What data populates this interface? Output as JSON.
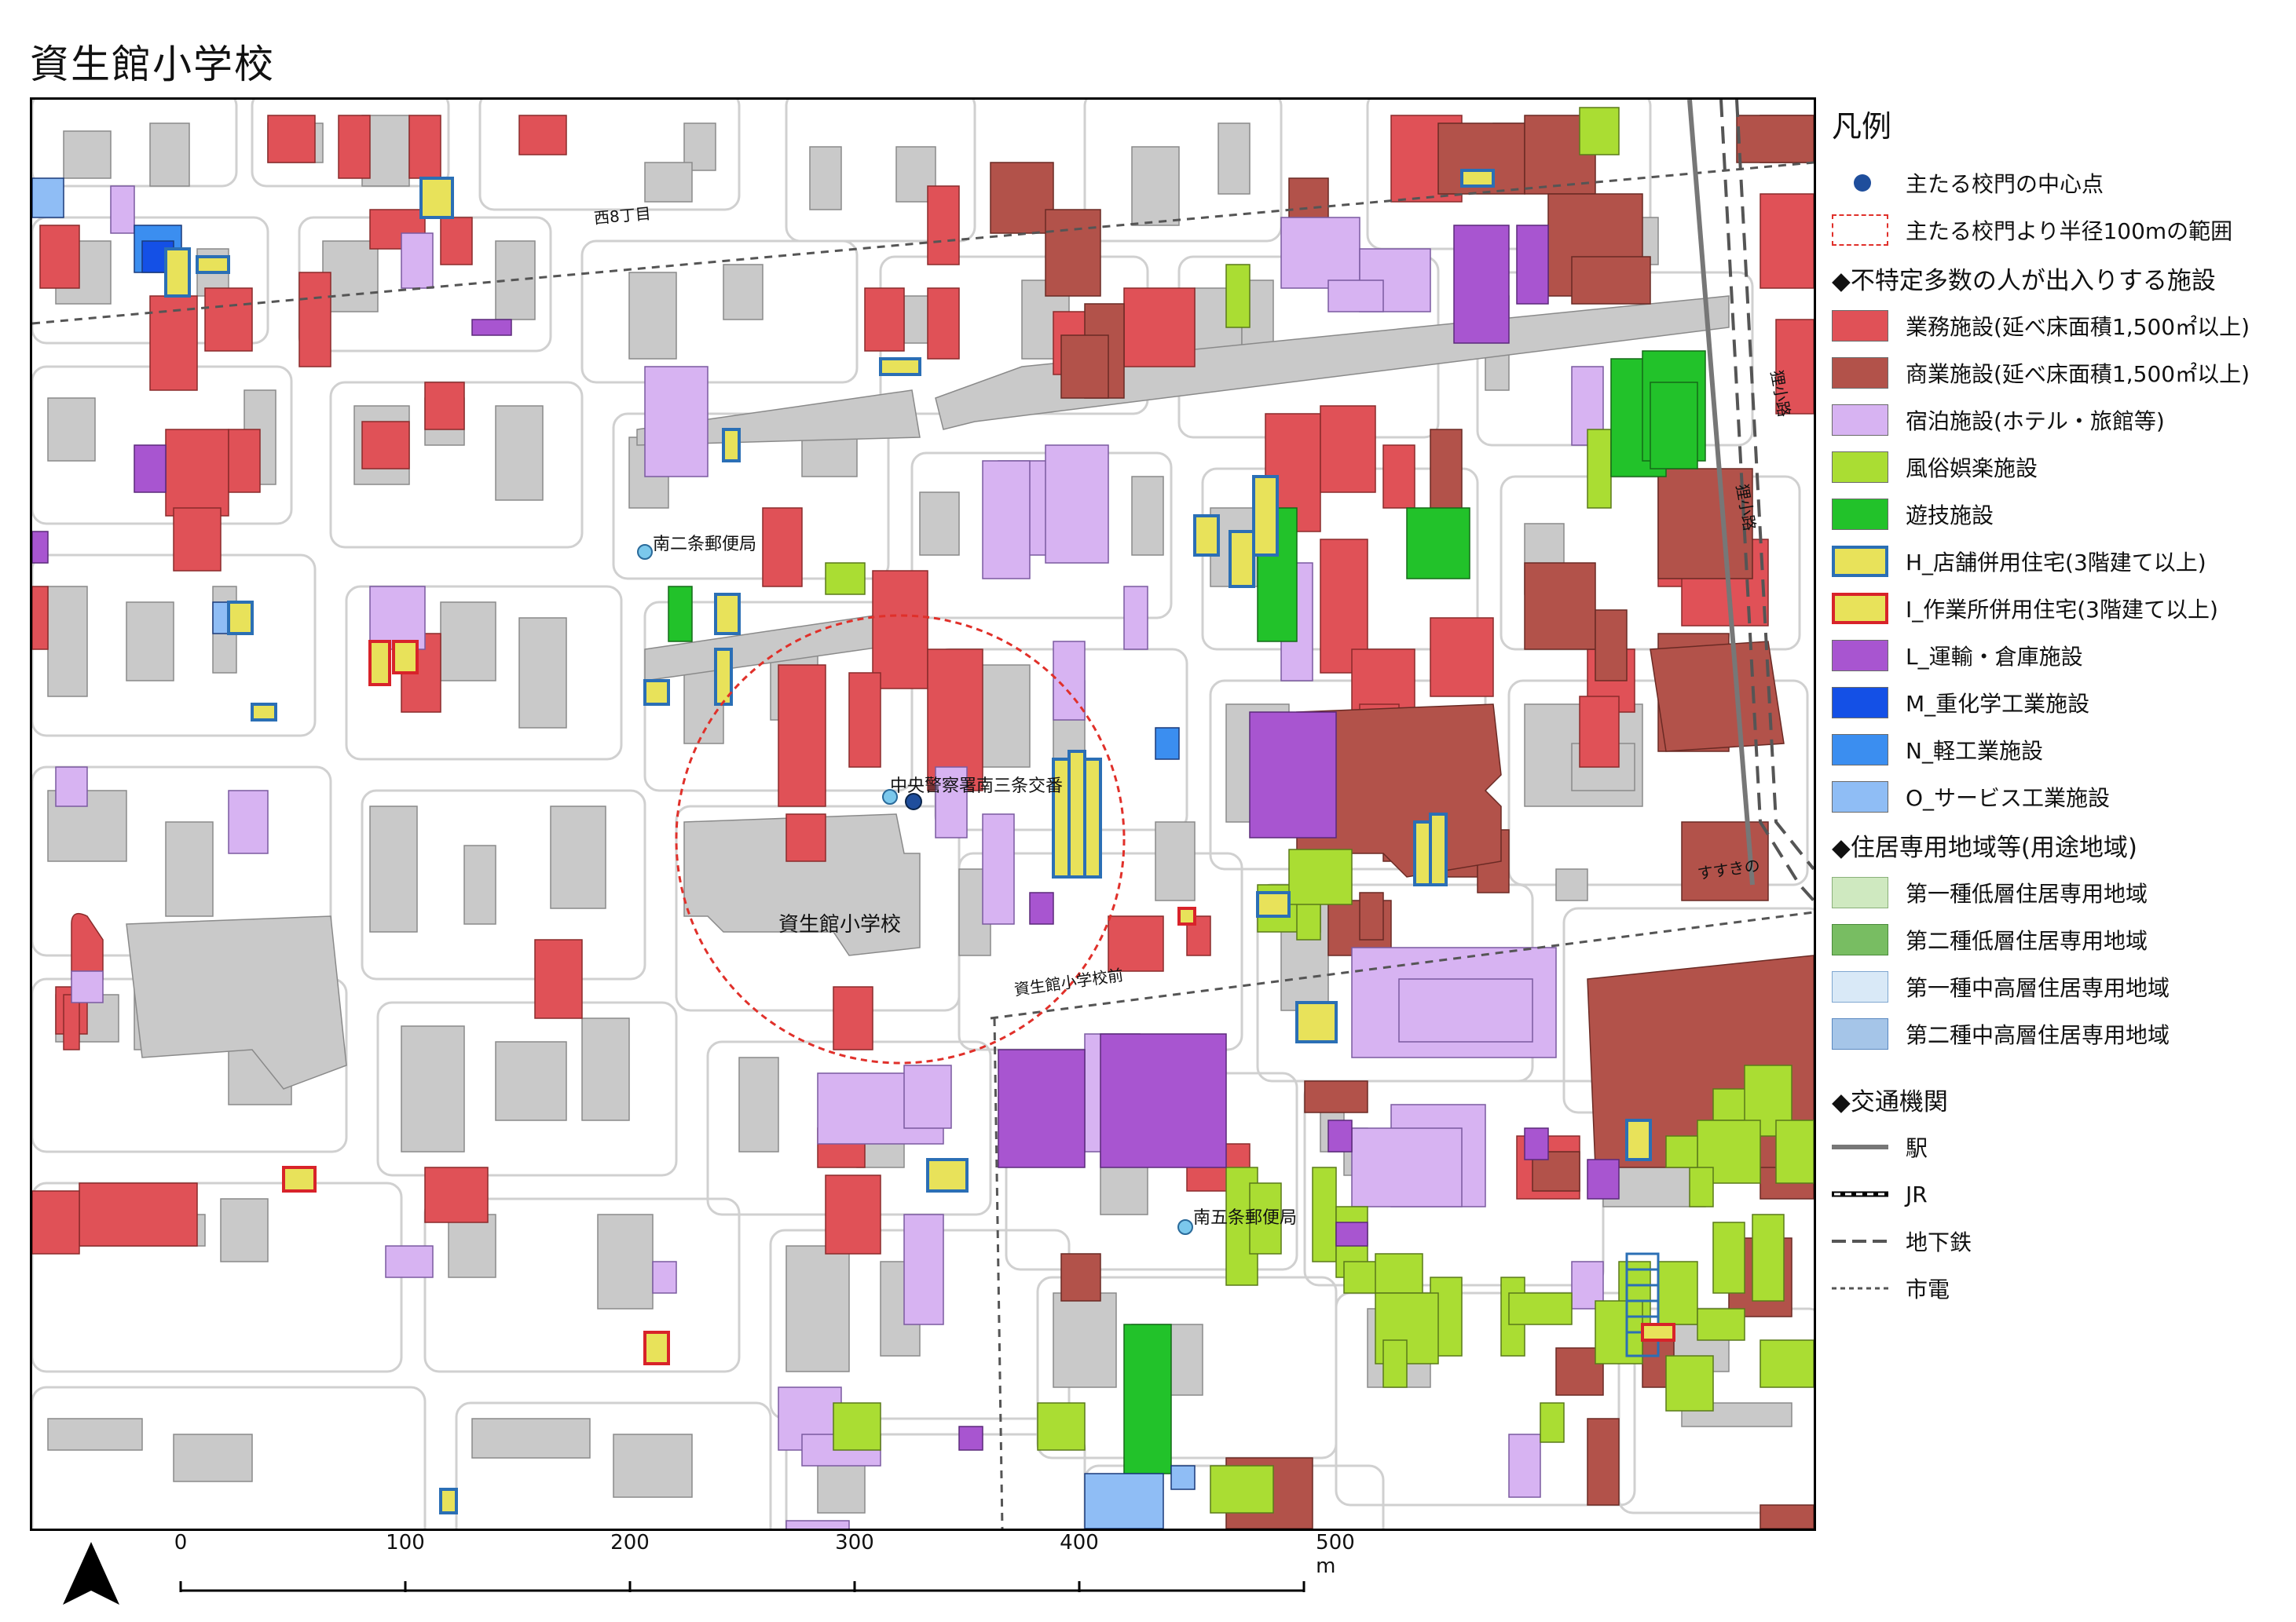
{
  "title": "資生館小学校",
  "map": {
    "labels": {
      "school": "資生館小学校",
      "post_south2": "南二条郵便局",
      "koban": "中央警察署南三条交番",
      "post_south5": "南五条郵便局",
      "nishi8": "西8丁目",
      "susukino": "すすきの",
      "shiseikan_mae": "資生館小学校前",
      "kita_koji_1": "狸小路",
      "kita_koji_2": "狸小路"
    },
    "colors": {
      "business": "#e05157",
      "commercial": "#b2524a",
      "lodging": "#d7b3f2",
      "entertainment": "#aadd33",
      "amusement": "#22c22a",
      "h_shop_housing_fill": "#e8e25a",
      "h_shop_housing_stroke": "#2b6fb5",
      "i_work_housing_stroke": "#d8232a",
      "l_transport": "#a855d0",
      "m_heavy_chemical": "#1450e6",
      "n_light_industry": "#3b8ef0",
      "o_service_industry": "#8fbdf5",
      "zone1_low_res": "#cfe9c0",
      "zone2_low_res": "#78bd62",
      "zone1_midhigh_res": "#d9e9f7",
      "zone2_midhigh_res": "#a5c5e8",
      "building": "#c9c9c9",
      "buffer": "#e0302a",
      "gate": "#1f4e9c"
    }
  },
  "legend": {
    "title": "凡例",
    "items": [
      {
        "label": "主たる校門の中心点",
        "icon": "blue-dot"
      },
      {
        "label": "主たる校門より半径100mの範囲",
        "icon": "red-dashed-box"
      },
      {
        "label": "◆不特定多数の人が出入りする施設",
        "icon": "section"
      },
      {
        "label": "業務施設(延べ床面積1,500㎡以上)",
        "icon": "fill-business"
      },
      {
        "label": "商業施設(延べ床面積1,500㎡以上)",
        "icon": "fill-commercial"
      },
      {
        "label": "宿泊施設(ホテル・旅館等)",
        "icon": "fill-lodging"
      },
      {
        "label": "風俗娯楽施設",
        "icon": "fill-entertainment"
      },
      {
        "label": "遊技施設",
        "icon": "fill-amusement"
      },
      {
        "label": "H_店舗併用住宅(3階建て以上)",
        "icon": "fill-h"
      },
      {
        "label": "I_作業所併用住宅(3階建て以上)",
        "icon": "fill-i"
      },
      {
        "label": "L_運輸・倉庫施設",
        "icon": "fill-l"
      },
      {
        "label": "M_重化学工業施設",
        "icon": "fill-m"
      },
      {
        "label": "N_軽工業施設",
        "icon": "fill-n"
      },
      {
        "label": "O_サービス工業施設",
        "icon": "fill-o"
      },
      {
        "label": "◆住居専用地域等(用途地域)",
        "icon": "section"
      },
      {
        "label": "第一種低層住居専用地域",
        "icon": "fill-z1"
      },
      {
        "label": "第二種低層住居専用地域",
        "icon": "fill-z2"
      },
      {
        "label": "第一種中高層住居専用地域",
        "icon": "fill-z3"
      },
      {
        "label": "第二種中高層住居専用地域",
        "icon": "fill-z4"
      },
      {
        "label": "",
        "icon": "spacer"
      },
      {
        "label": "◆交通機関",
        "icon": "section"
      },
      {
        "label": "駅",
        "icon": "line-station"
      },
      {
        "label": "JR",
        "icon": "line-jr"
      },
      {
        "label": "地下鉄",
        "icon": "line-subway"
      },
      {
        "label": "市電",
        "icon": "line-tram"
      }
    ]
  },
  "scale_bar": {
    "ticks": [
      "0",
      "100",
      "200",
      "300",
      "400",
      "500 m"
    ]
  }
}
